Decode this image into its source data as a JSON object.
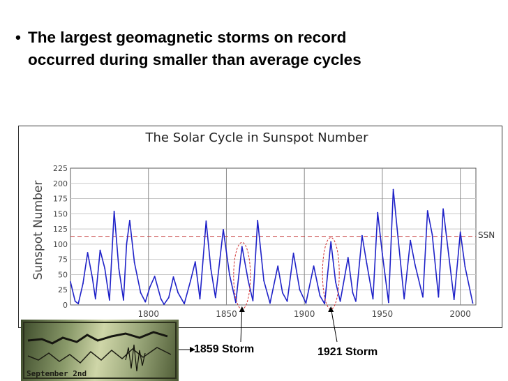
{
  "slide": {
    "bullet_marker": "•",
    "bullet_line1": "The largest geomagnetic storms on record",
    "bullet_line2": "occurred during smaller than average cycles",
    "storm_1859_label": "1859 Storm",
    "storm_1921_label": "1921 Storm",
    "photo_caption": "September 2nd"
  },
  "colors": {
    "series": "#1f22c8",
    "mean_line": "#c43a3a",
    "ellipse": "#d23030",
    "axis": "#5a5a5a"
  },
  "chart_data": {
    "type": "line",
    "title": "The Solar Cycle in Sunspot Number",
    "ylabel": "Sunspot Number",
    "xlabel": "",
    "xlim": [
      1750,
      2010
    ],
    "ylim": [
      0,
      225
    ],
    "x_ticks": [
      "1800",
      "1850",
      "1900",
      "1950",
      "2000"
    ],
    "x_tick_values": [
      1800,
      1850,
      1900,
      1950,
      2000
    ],
    "y_ticks": [
      "0",
      "25",
      "50",
      "75",
      "100",
      "125",
      "150",
      "175",
      "200",
      "225"
    ],
    "y_tick_values": [
      0,
      25,
      50,
      75,
      100,
      125,
      150,
      175,
      200,
      225
    ],
    "grid": true,
    "mean_line": {
      "label": "SSN",
      "value": 113
    },
    "series": [
      {
        "values": [
          [
            1750,
            38
          ],
          [
            1753,
            6
          ],
          [
            1755,
            2
          ],
          [
            1758,
            35
          ],
          [
            1761,
            86
          ],
          [
            1764,
            45
          ],
          [
            1766,
            10
          ],
          [
            1769,
            90
          ],
          [
            1772,
            60
          ],
          [
            1775,
            8
          ],
          [
            1778,
            154
          ],
          [
            1781,
            60
          ],
          [
            1784,
            8
          ],
          [
            1786,
            100
          ],
          [
            1788,
            139
          ],
          [
            1791,
            70
          ],
          [
            1795,
            20
          ],
          [
            1798,
            5
          ],
          [
            1801,
            30
          ],
          [
            1804,
            47
          ],
          [
            1808,
            10
          ],
          [
            1810,
            1
          ],
          [
            1813,
            12
          ],
          [
            1816,
            46
          ],
          [
            1819,
            20
          ],
          [
            1823,
            2
          ],
          [
            1827,
            40
          ],
          [
            1830,
            71
          ],
          [
            1833,
            10
          ],
          [
            1837,
            138
          ],
          [
            1840,
            60
          ],
          [
            1843,
            12
          ],
          [
            1848,
            124
          ],
          [
            1852,
            50
          ],
          [
            1856,
            4
          ],
          [
            1860,
            96
          ],
          [
            1864,
            40
          ],
          [
            1867,
            7
          ],
          [
            1870,
            139
          ],
          [
            1874,
            40
          ],
          [
            1878,
            3
          ],
          [
            1883,
            64
          ],
          [
            1886,
            20
          ],
          [
            1889,
            6
          ],
          [
            1893,
            85
          ],
          [
            1897,
            25
          ],
          [
            1901,
            3
          ],
          [
            1906,
            64
          ],
          [
            1910,
            15
          ],
          [
            1913,
            2
          ],
          [
            1917,
            104
          ],
          [
            1920,
            38
          ],
          [
            1923,
            6
          ],
          [
            1928,
            78
          ],
          [
            1931,
            20
          ],
          [
            1933,
            6
          ],
          [
            1937,
            114
          ],
          [
            1940,
            68
          ],
          [
            1944,
            10
          ],
          [
            1947,
            152
          ],
          [
            1950,
            84
          ],
          [
            1954,
            4
          ],
          [
            1957,
            190
          ],
          [
            1960,
            112
          ],
          [
            1964,
            10
          ],
          [
            1968,
            106
          ],
          [
            1971,
            66
          ],
          [
            1976,
            13
          ],
          [
            1979,
            155
          ],
          [
            1982,
            116
          ],
          [
            1986,
            13
          ],
          [
            1989,
            158
          ],
          [
            1992,
            94
          ],
          [
            1996,
            9
          ],
          [
            2000,
            120
          ],
          [
            2003,
            63
          ],
          [
            2008,
            3
          ]
        ]
      }
    ],
    "annotations": [
      {
        "text": "1859 Storm",
        "cycle_max_year": 1860
      },
      {
        "text": "1921 Storm",
        "cycle_max_year": 1917
      }
    ]
  }
}
